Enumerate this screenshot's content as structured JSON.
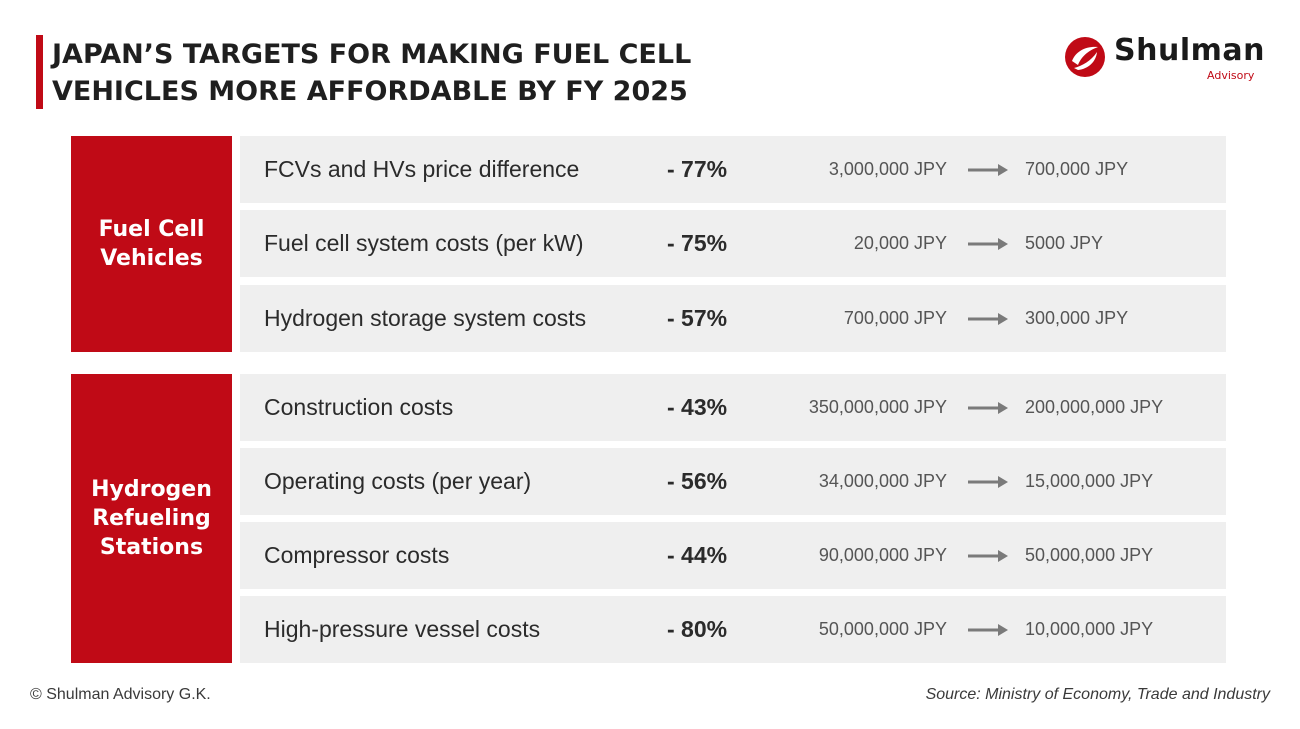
{
  "title": {
    "line1": "JAPAN’S TARGETS FOR MAKING FUEL CELL",
    "line2": "VEHICLES MORE AFFORDABLE BY FY 2025"
  },
  "logo": {
    "name": "Shulman",
    "sub": "Advisory",
    "icon": "shulman-logo-mark",
    "color": "#c00a16"
  },
  "groups": [
    {
      "label_lines": [
        "Fuel Cell",
        "Vehicles"
      ],
      "rows": [
        {
          "name": "FCVs and HVs price difference",
          "pct": "- 77%",
          "from": "3,000,000 JPY",
          "to": "700,000 JPY"
        },
        {
          "name": "Fuel cell system costs (per kW)",
          "pct": "- 75%",
          "from": "20,000 JPY",
          "to": "5000 JPY"
        },
        {
          "name": "Hydrogen storage system costs",
          "pct": "- 57%",
          "from": "700,000 JPY",
          "to": "300,000 JPY"
        }
      ]
    },
    {
      "label_lines": [
        "Hydrogen",
        "Refueling",
        "Stations"
      ],
      "rows": [
        {
          "name": "Construction costs",
          "pct": "- 43%",
          "from": "350,000,000 JPY",
          "to": "200,000,000 JPY"
        },
        {
          "name": "Operating costs (per year)",
          "pct": "- 56%",
          "from": "34,000,000 JPY",
          "to": "15,000,000 JPY"
        },
        {
          "name": "Compressor costs",
          "pct": "- 44%",
          "from": "90,000,000 JPY",
          "to": "50,000,000 JPY"
        },
        {
          "name": "High-pressure vessel costs",
          "pct": "- 80%",
          "from": "50,000,000 JPY",
          "to": "10,000,000 JPY"
        }
      ]
    }
  ],
  "footer": {
    "copyright": "© Shulman Advisory G.K.",
    "source": "Source: Ministry of Economy, Trade and Industry"
  },
  "colors": {
    "accent": "#c00a16",
    "row_bg": "#efefef",
    "arrow": "#7a7a7a"
  }
}
